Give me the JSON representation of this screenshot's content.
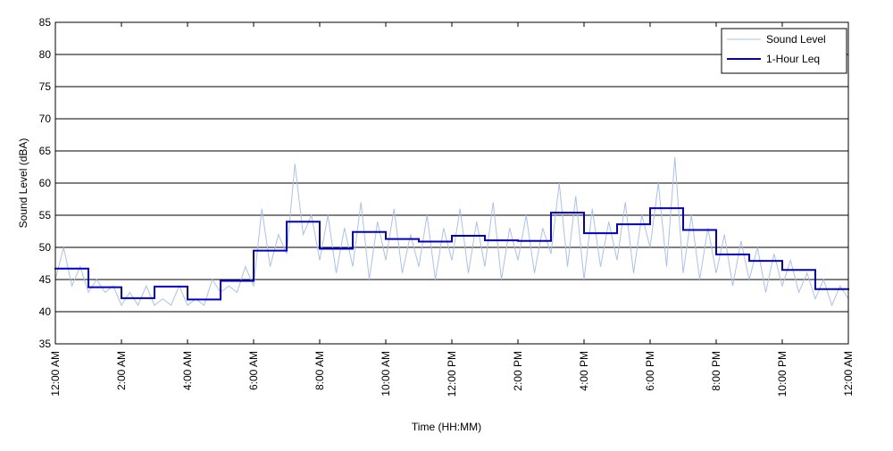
{
  "chart_data": {
    "type": "line",
    "xlabel": "Time (HH:MM)",
    "ylabel": "Sound Level (dBA)",
    "xlim": [
      0,
      24
    ],
    "ylim": [
      35,
      85
    ],
    "xticks": [
      {
        "value": 0,
        "label": "12:00 AM"
      },
      {
        "value": 2,
        "label": "2:00 AM"
      },
      {
        "value": 4,
        "label": "4:00 AM"
      },
      {
        "value": 6,
        "label": "6:00 AM"
      },
      {
        "value": 8,
        "label": "8:00 AM"
      },
      {
        "value": 10,
        "label": "10:00 AM"
      },
      {
        "value": 12,
        "label": "12:00 PM"
      },
      {
        "value": 14,
        "label": "2:00 PM"
      },
      {
        "value": 16,
        "label": "4:00 PM"
      },
      {
        "value": 18,
        "label": "6:00 PM"
      },
      {
        "value": 20,
        "label": "8:00 PM"
      },
      {
        "value": 22,
        "label": "10:00 PM"
      },
      {
        "value": 24,
        "label": "12:00 AM"
      }
    ],
    "yticks": [
      35,
      40,
      45,
      50,
      55,
      60,
      65,
      70,
      75,
      80,
      85
    ],
    "grid": true,
    "legend": "upper right",
    "series": [
      {
        "name": "Sound Level",
        "color": "#a9c1f2",
        "x": [
          0,
          0.25,
          0.5,
          0.75,
          1,
          1.25,
          1.5,
          1.75,
          2,
          2.25,
          2.5,
          2.75,
          3,
          3.25,
          3.5,
          3.75,
          4,
          4.25,
          4.5,
          4.75,
          5,
          5.25,
          5.5,
          5.75,
          6,
          6.25,
          6.5,
          6.75,
          7,
          7.25,
          7.5,
          7.75,
          8,
          8.25,
          8.5,
          8.75,
          9,
          9.25,
          9.5,
          9.75,
          10,
          10.25,
          10.5,
          10.75,
          11,
          11.25,
          11.5,
          11.75,
          12,
          12.25,
          12.5,
          12.75,
          13,
          13.25,
          13.5,
          13.75,
          14,
          14.25,
          14.5,
          14.75,
          15,
          15.25,
          15.5,
          15.75,
          16,
          16.25,
          16.5,
          16.75,
          17,
          17.25,
          17.5,
          17.75,
          18,
          18.25,
          18.5,
          18.75,
          19,
          19.25,
          19.5,
          19.75,
          20,
          20.25,
          20.5,
          20.75,
          21,
          21.25,
          21.5,
          21.75,
          22,
          22.25,
          22.5,
          22.75,
          23,
          23.25,
          23.5,
          23.75,
          24
        ],
        "values": [
          45,
          50,
          44,
          47,
          43,
          45,
          43,
          44,
          41,
          43,
          41,
          44,
          41,
          42,
          41,
          44,
          41,
          42,
          41,
          45,
          43,
          44,
          43,
          47,
          44,
          56,
          47,
          52,
          49,
          63,
          52,
          55,
          48,
          55,
          46,
          53,
          47,
          57,
          45,
          54,
          48,
          56,
          46,
          52,
          47,
          55,
          45,
          53,
          48,
          56,
          46,
          54,
          47,
          57,
          45,
          53,
          48,
          55,
          46,
          53,
          49,
          60,
          47,
          58,
          45,
          56,
          47,
          54,
          48,
          57,
          46,
          55,
          50,
          60,
          47,
          64,
          46,
          55,
          45,
          53,
          46,
          52,
          44,
          51,
          45,
          50,
          43,
          49,
          44,
          48,
          43,
          46,
          42,
          45,
          41,
          44,
          42
        ]
      },
      {
        "name": "1-Hour Leq",
        "color": "#0000c8",
        "bins": [
          0,
          1,
          2,
          3,
          4,
          5,
          6,
          7,
          8,
          9,
          10,
          11,
          12,
          13,
          14,
          15,
          16,
          17,
          18,
          19,
          20,
          21,
          22,
          23,
          24
        ],
        "values": [
          46.7,
          43.8,
          42.1,
          43.9,
          41.9,
          44.8,
          49.5,
          54.0,
          49.8,
          52.4,
          51.3,
          50.9,
          51.8,
          51.1,
          51.0,
          55.4,
          52.2,
          53.6,
          56.1,
          52.7,
          48.9,
          47.9,
          46.5,
          43.5
        ]
      }
    ]
  }
}
